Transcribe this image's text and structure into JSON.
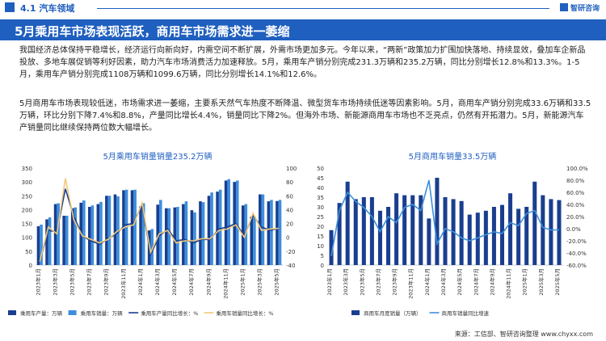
{
  "header": {
    "section": "4.1 汽车领域",
    "logo": "智研咨询",
    "title": "5月乘用车市场表现活跃，商用车市场需求进一萎缩"
  },
  "paragraphs": {
    "p1": "我国经济总体保持平稳增长，经济运行向新向好，内需空间不断扩展，外需市场更加多元。今年以来，“两新”政策加力扩围加快落地、持续显效，叠加车企新品投放、多地车展促销等利好因素，助力汽车市场消费活力加速释放。5月，乘用车产销分别完成231.3万辆和235.2万辆，同比分别增长12.8%和13.3%。1-5月，乘用车产销分别完成1108万辆和1099.6万辆，同比分别增长14.1%和12.6%。",
    "p2": "5月商用车市场表现较低迷，市场需求进一萎缩，主要系天然气车热度不断降温、微型货车市场持续低迷等因素影响。5月，商用车产销分别完成33.6万辆和33.5万辆，环比分别下降7.4%和8.8%，产量同比增长4.4%，销量同比下降2%。但海外市场、新能源商用车市场也不乏亮点，仍然有开拓潜力。5月，新能源汽车产销量同比继续保持两位数大幅增长。"
  },
  "source": "来源：工信部、智研咨询整理  www.chyxx.com",
  "colors": {
    "primary": "#1f5fbf",
    "bar_dark": "#1a3e8f",
    "bar_light": "#3d8fdc",
    "line_dark": "#1a3e8f",
    "line_gold": "#f2c878",
    "line_light": "#3d8fdc"
  },
  "chart_data": [
    {
      "type": "bar",
      "title": "5月乘用车销量销量235.2万辆",
      "categories": [
        "2023年1月",
        "2023年2月",
        "2023年3月",
        "2023年4月",
        "2023年5月",
        "2023年6月",
        "2023年7月",
        "2023年8月",
        "2023年9月",
        "2023年10月",
        "2023年11月",
        "2023年12月",
        "2024年1月",
        "2024年2月",
        "2024年3月",
        "2024年4月",
        "2024年5月",
        "2024年6月",
        "2024年7月",
        "2024年8月",
        "2024年9月",
        "2024年10月",
        "2024年11月",
        "2024年12月",
        "2025年1月",
        "2025年2月",
        "2025年3月",
        "2025年4月",
        "2025年5月"
      ],
      "x_tick_labels": [
        "2023年1月",
        "2023年3月",
        "2023年5月",
        "2023年7月",
        "2023年9月",
        "2023年11月",
        "2024年1月",
        "2024年3月",
        "2024年5月",
        "2024年7月",
        "2024年9月",
        "2024年11月",
        "2025年1月",
        "2025年3月",
        "2025年5月"
      ],
      "ylim_left": [
        0,
        350
      ],
      "yticks_left": [
        0,
        50,
        100,
        150,
        200,
        250,
        300,
        350
      ],
      "ylim_right": [
        -40,
        100
      ],
      "yticks_right": [
        -40,
        -20,
        0,
        20,
        40,
        60,
        80,
        100
      ],
      "series": [
        {
          "name": "乘用车产量：万辆",
          "kind": "bar",
          "values": [
            140,
            165,
            220,
            178,
            205,
            225,
            210,
            220,
            250,
            255,
            270,
            270,
            212,
            125,
            218,
            205,
            208,
            220,
            198,
            230,
            250,
            265,
            305,
            300,
            215,
            175,
            255,
            230,
            231
          ]
        },
        {
          "name": "乘用车销量：万辆",
          "kind": "bar",
          "values": [
            146,
            172,
            223,
            178,
            208,
            233,
            215,
            228,
            250,
            248,
            272,
            272,
            223,
            130,
            235,
            205,
            210,
            230,
            190,
            227,
            262,
            272,
            310,
            305,
            220,
            175,
            255,
            235,
            235
          ]
        },
        {
          "name": "乘用车产量同比增长：%",
          "kind": "line",
          "values": [
            -35,
            10,
            8,
            70,
            30,
            2,
            -5,
            -10,
            -2,
            5,
            18,
            20,
            48,
            -25,
            2,
            12,
            -5,
            -3,
            -8,
            -3,
            -3,
            12,
            15,
            20,
            2,
            32,
            15,
            10,
            13
          ]
        },
        {
          "name": "乘用车销量同比增长：%",
          "kind": "line",
          "values": [
            -35,
            15,
            5,
            85,
            25,
            2,
            -3,
            -8,
            -3,
            8,
            15,
            18,
            50,
            -22,
            5,
            10,
            -8,
            -5,
            -5,
            -2,
            -2,
            10,
            12,
            18,
            0,
            35,
            10,
            12,
            13
          ]
        }
      ],
      "legend_position": "bottom"
    },
    {
      "type": "bar",
      "title": "5月商用车销量33.5万辆",
      "categories": [
        "2023年1月",
        "2023年2月",
        "2023年3月",
        "2023年4月",
        "2023年5月",
        "2023年6月",
        "2023年7月",
        "2023年8月",
        "2023年9月",
        "2023年10月",
        "2023年11月",
        "2023年12月",
        "2024年1月",
        "2024年2月",
        "2024年3月",
        "2024年4月",
        "2024年5月",
        "2024年6月",
        "2024年7月",
        "2024年8月",
        "2024年9月",
        "2024年10月",
        "2024年11月",
        "2024年12月",
        "2025年1月",
        "2025年2月",
        "2025年3月",
        "2025年4月",
        "2025年5月"
      ],
      "x_tick_labels": [
        "2023年1月",
        "2023年3月",
        "2023年5月",
        "2023年7月",
        "2023年9月",
        "2023年11月",
        "2024年1月",
        "2024年3月",
        "2024年5月",
        "2024年7月",
        "2024年9月",
        "2024年11月",
        "2025年1月",
        "2025年3月",
        "2025年5月"
      ],
      "ylim_left": [
        0,
        50
      ],
      "yticks_left": [
        0,
        5,
        10,
        15,
        20,
        25,
        30,
        35,
        40,
        45,
        50
      ],
      "ylim_right": [
        -60,
        100
      ],
      "ytick_labels_right": [
        "-60.0%",
        "-40.0%",
        "-20.0%",
        "0.0%",
        "20.0%",
        "40.0%",
        "60.0%",
        "80.0%",
        "100.0%"
      ],
      "series": [
        {
          "name": "商用车月度销量（万辆）",
          "kind": "bar",
          "values": [
            18,
            32,
            43,
            34,
            35,
            35,
            28,
            30,
            37,
            36,
            36,
            36,
            24,
            45,
            35,
            34,
            33,
            26,
            27,
            28,
            30,
            31,
            37,
            29,
            30,
            43,
            36,
            34,
            33.5
          ]
        },
        {
          "name": "商用车销量同比增速",
          "kind": "line",
          "values": [
            -45,
            30,
            60,
            45,
            35,
            20,
            -5,
            20,
            10,
            35,
            40,
            30,
            80,
            -25,
            0,
            -5,
            -15,
            -20,
            -15,
            -10,
            -5,
            -8,
            10,
            5,
            25,
            30,
            2,
            -2,
            -2
          ]
        }
      ],
      "legend_position": "bottom"
    }
  ]
}
